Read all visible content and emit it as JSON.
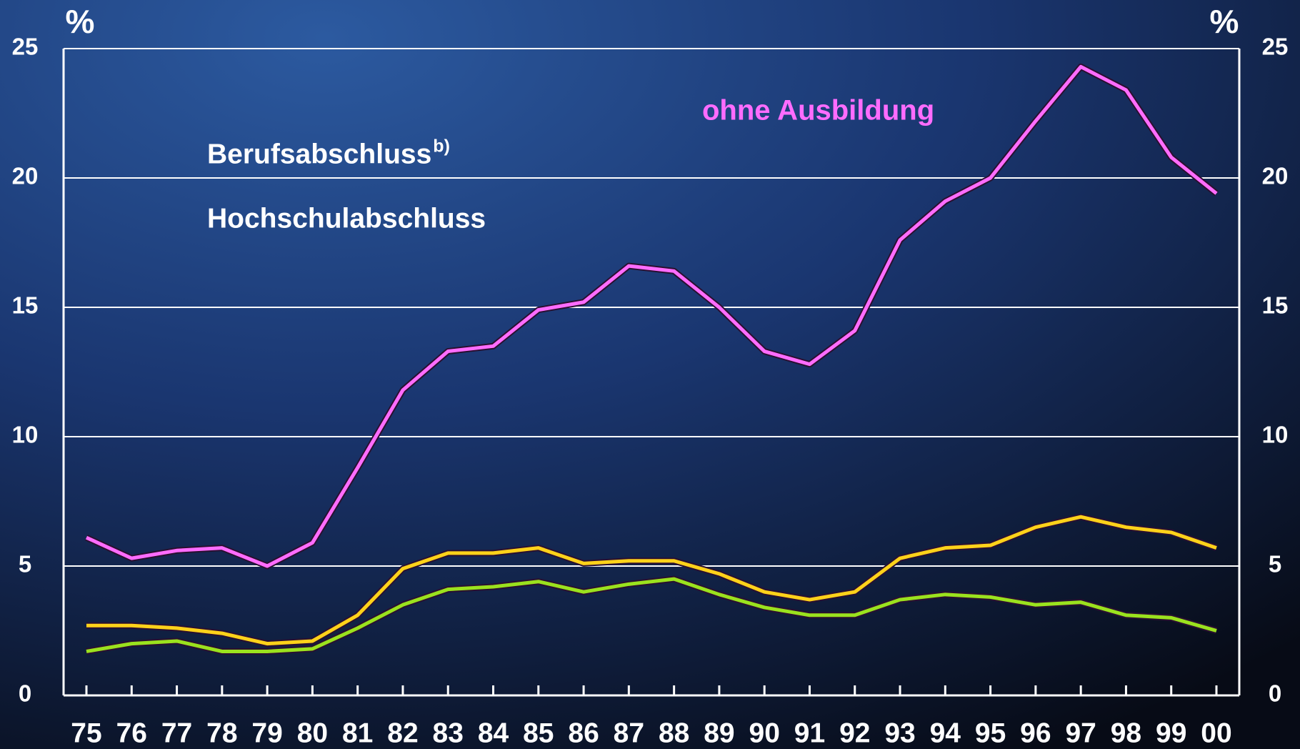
{
  "chart_data": {
    "type": "line",
    "categories": [
      "75",
      "76",
      "77",
      "78",
      "79",
      "80",
      "81",
      "82",
      "83",
      "84",
      "85",
      "86",
      "87",
      "88",
      "89",
      "90",
      "91",
      "92",
      "93",
      "94",
      "95",
      "96",
      "97",
      "98",
      "99",
      "00"
    ],
    "series": [
      {
        "name": "ohne Ausbildung",
        "color": "#ff6cff",
        "direct_label": true,
        "values": [
          6.1,
          5.3,
          5.6,
          5.7,
          5.0,
          5.9,
          8.8,
          11.8,
          13.3,
          13.5,
          14.9,
          15.2,
          16.6,
          16.4,
          15.0,
          13.3,
          12.8,
          14.1,
          17.6,
          19.1,
          20.0,
          22.2,
          24.3,
          23.4,
          20.8,
          19.4
        ]
      },
      {
        "name": "Berufsabschluss",
        "footnote_mark": "b)",
        "color": "#ffd21a",
        "values": [
          2.7,
          2.7,
          2.6,
          2.4,
          2.0,
          2.1,
          3.1,
          4.9,
          5.5,
          5.5,
          5.7,
          5.1,
          5.2,
          5.2,
          4.7,
          4.0,
          3.7,
          4.0,
          5.3,
          5.7,
          5.8,
          6.5,
          6.9,
          6.5,
          6.3,
          5.7
        ]
      },
      {
        "name": "Hochschulabschluss",
        "color": "#9be21e",
        "values": [
          1.7,
          2.0,
          2.1,
          1.7,
          1.7,
          1.8,
          2.6,
          3.5,
          4.1,
          4.2,
          4.4,
          4.0,
          4.3,
          4.5,
          3.9,
          3.4,
          3.1,
          3.1,
          3.7,
          3.9,
          3.8,
          3.5,
          3.6,
          3.1,
          3.0,
          2.5
        ]
      }
    ],
    "y_unit": "%",
    "y2_unit": "%",
    "ylim": [
      0,
      25
    ],
    "yticks": [
      0,
      5,
      10,
      15,
      20,
      25
    ],
    "y2lim": [
      0,
      25
    ],
    "y2ticks": [
      0,
      5,
      10,
      15,
      20,
      25
    ],
    "grid": true
  }
}
